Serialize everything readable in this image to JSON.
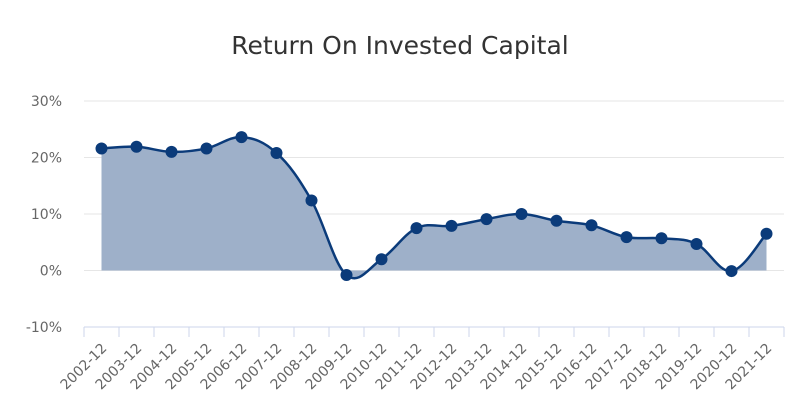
{
  "chart_data": {
    "type": "area",
    "title": "Return On Invested Capital",
    "xlabel": "",
    "ylabel": "",
    "categories": [
      "2002-12",
      "2003-12",
      "2004-12",
      "2005-12",
      "2006-12",
      "2007-12",
      "2008-12",
      "2009-12",
      "2010-12",
      "2011-12",
      "2012-12",
      "2013-12",
      "2014-12",
      "2015-12",
      "2016-12",
      "2017-12",
      "2018-12",
      "2019-12",
      "2020-12",
      "2021-12"
    ],
    "values": [
      21.6,
      21.9,
      21.0,
      21.6,
      23.6,
      20.8,
      12.4,
      -0.8,
      2.0,
      7.5,
      7.9,
      9.1,
      10.0,
      8.8,
      8.0,
      5.9,
      5.7,
      4.7,
      -0.1,
      6.5
    ],
    "yticks": [
      -10,
      0,
      10,
      20,
      30
    ],
    "ytick_labels": [
      "-10%",
      "0%",
      "10%",
      "20%",
      "30%"
    ],
    "ylim": [
      -10,
      30
    ],
    "grid": true,
    "legend": "none",
    "colors": {
      "line": "#0b3b7a",
      "fill": "#9eb0c9",
      "marker": "#0b3b7a"
    }
  }
}
